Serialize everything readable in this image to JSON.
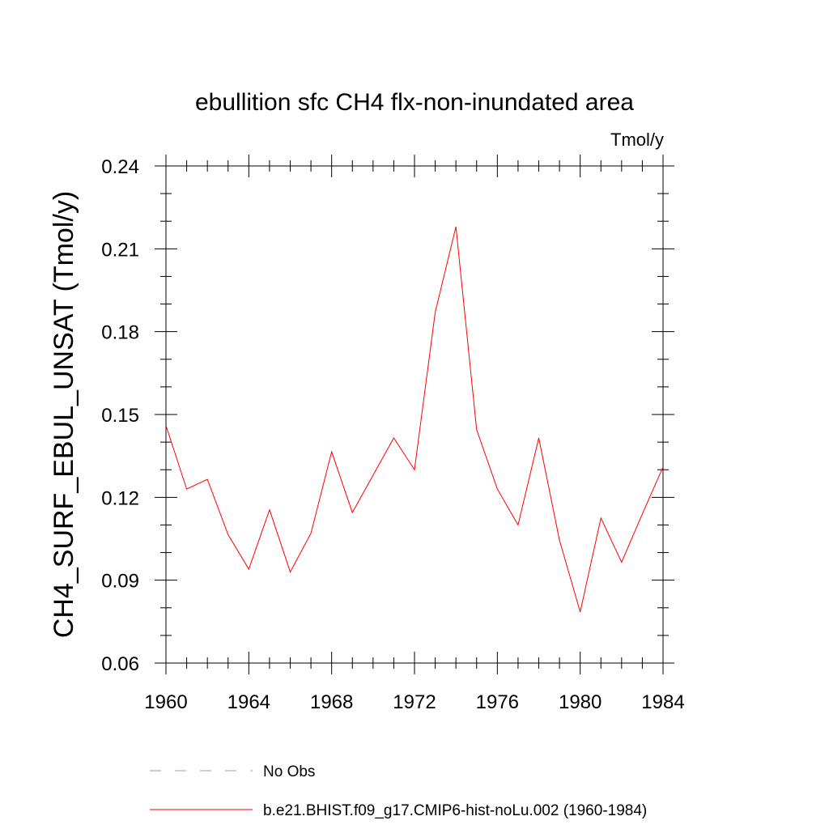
{
  "chart_data": {
    "type": "line",
    "title": "ebullition sfc CH4 flx-non-inundated area",
    "units_label": "Tmol/y",
    "ylabel": "CH4_SURF_EBUL_UNSAT  (Tmol/y)",
    "xlabel": "",
    "xlim": [
      1960,
      1984
    ],
    "ylim": [
      0.06,
      0.24
    ],
    "x_ticks": [
      1960,
      1964,
      1968,
      1972,
      1976,
      1980,
      1984
    ],
    "x_tick_labels": [
      "1960",
      "1964",
      "1968",
      "1972",
      "1976",
      "1980",
      "1984"
    ],
    "y_ticks": [
      0.06,
      0.09,
      0.12,
      0.15,
      0.18,
      0.21,
      0.24
    ],
    "y_tick_labels": [
      "0.06",
      "0.09",
      "0.12",
      "0.15",
      "0.18",
      "0.21",
      "0.24"
    ],
    "grid": false,
    "legend_position": "bottom",
    "series": [
      {
        "name": "b.e21.BHIST.f09_g17.CMIP6-hist-noLu.002 (1960-1984)",
        "color": "#ff0000",
        "style": "solid",
        "x": [
          1960,
          1961,
          1962,
          1963,
          1964,
          1965,
          1966,
          1967,
          1968,
          1969,
          1970,
          1971,
          1972,
          1973,
          1974,
          1975,
          1976,
          1977,
          1978,
          1979,
          1980,
          1981,
          1982,
          1983,
          1984
        ],
        "values": [
          0.146,
          0.123,
          0.1265,
          0.1065,
          0.094,
          0.1155,
          0.093,
          0.107,
          0.1365,
          0.1145,
          0.128,
          0.1415,
          0.13,
          0.187,
          0.218,
          0.1445,
          0.123,
          0.11,
          0.1415,
          0.1045,
          0.0785,
          0.1125,
          0.0965,
          0.114,
          0.131
        ]
      }
    ],
    "legend": [
      {
        "label": "No Obs",
        "color": "#9999cc",
        "style": "dashed"
      },
      {
        "label": "b.e21.BHIST.f09_g17.CMIP6-hist-noLu.002 (1960-1984)",
        "color": "#ff0000",
        "style": "solid"
      }
    ]
  }
}
